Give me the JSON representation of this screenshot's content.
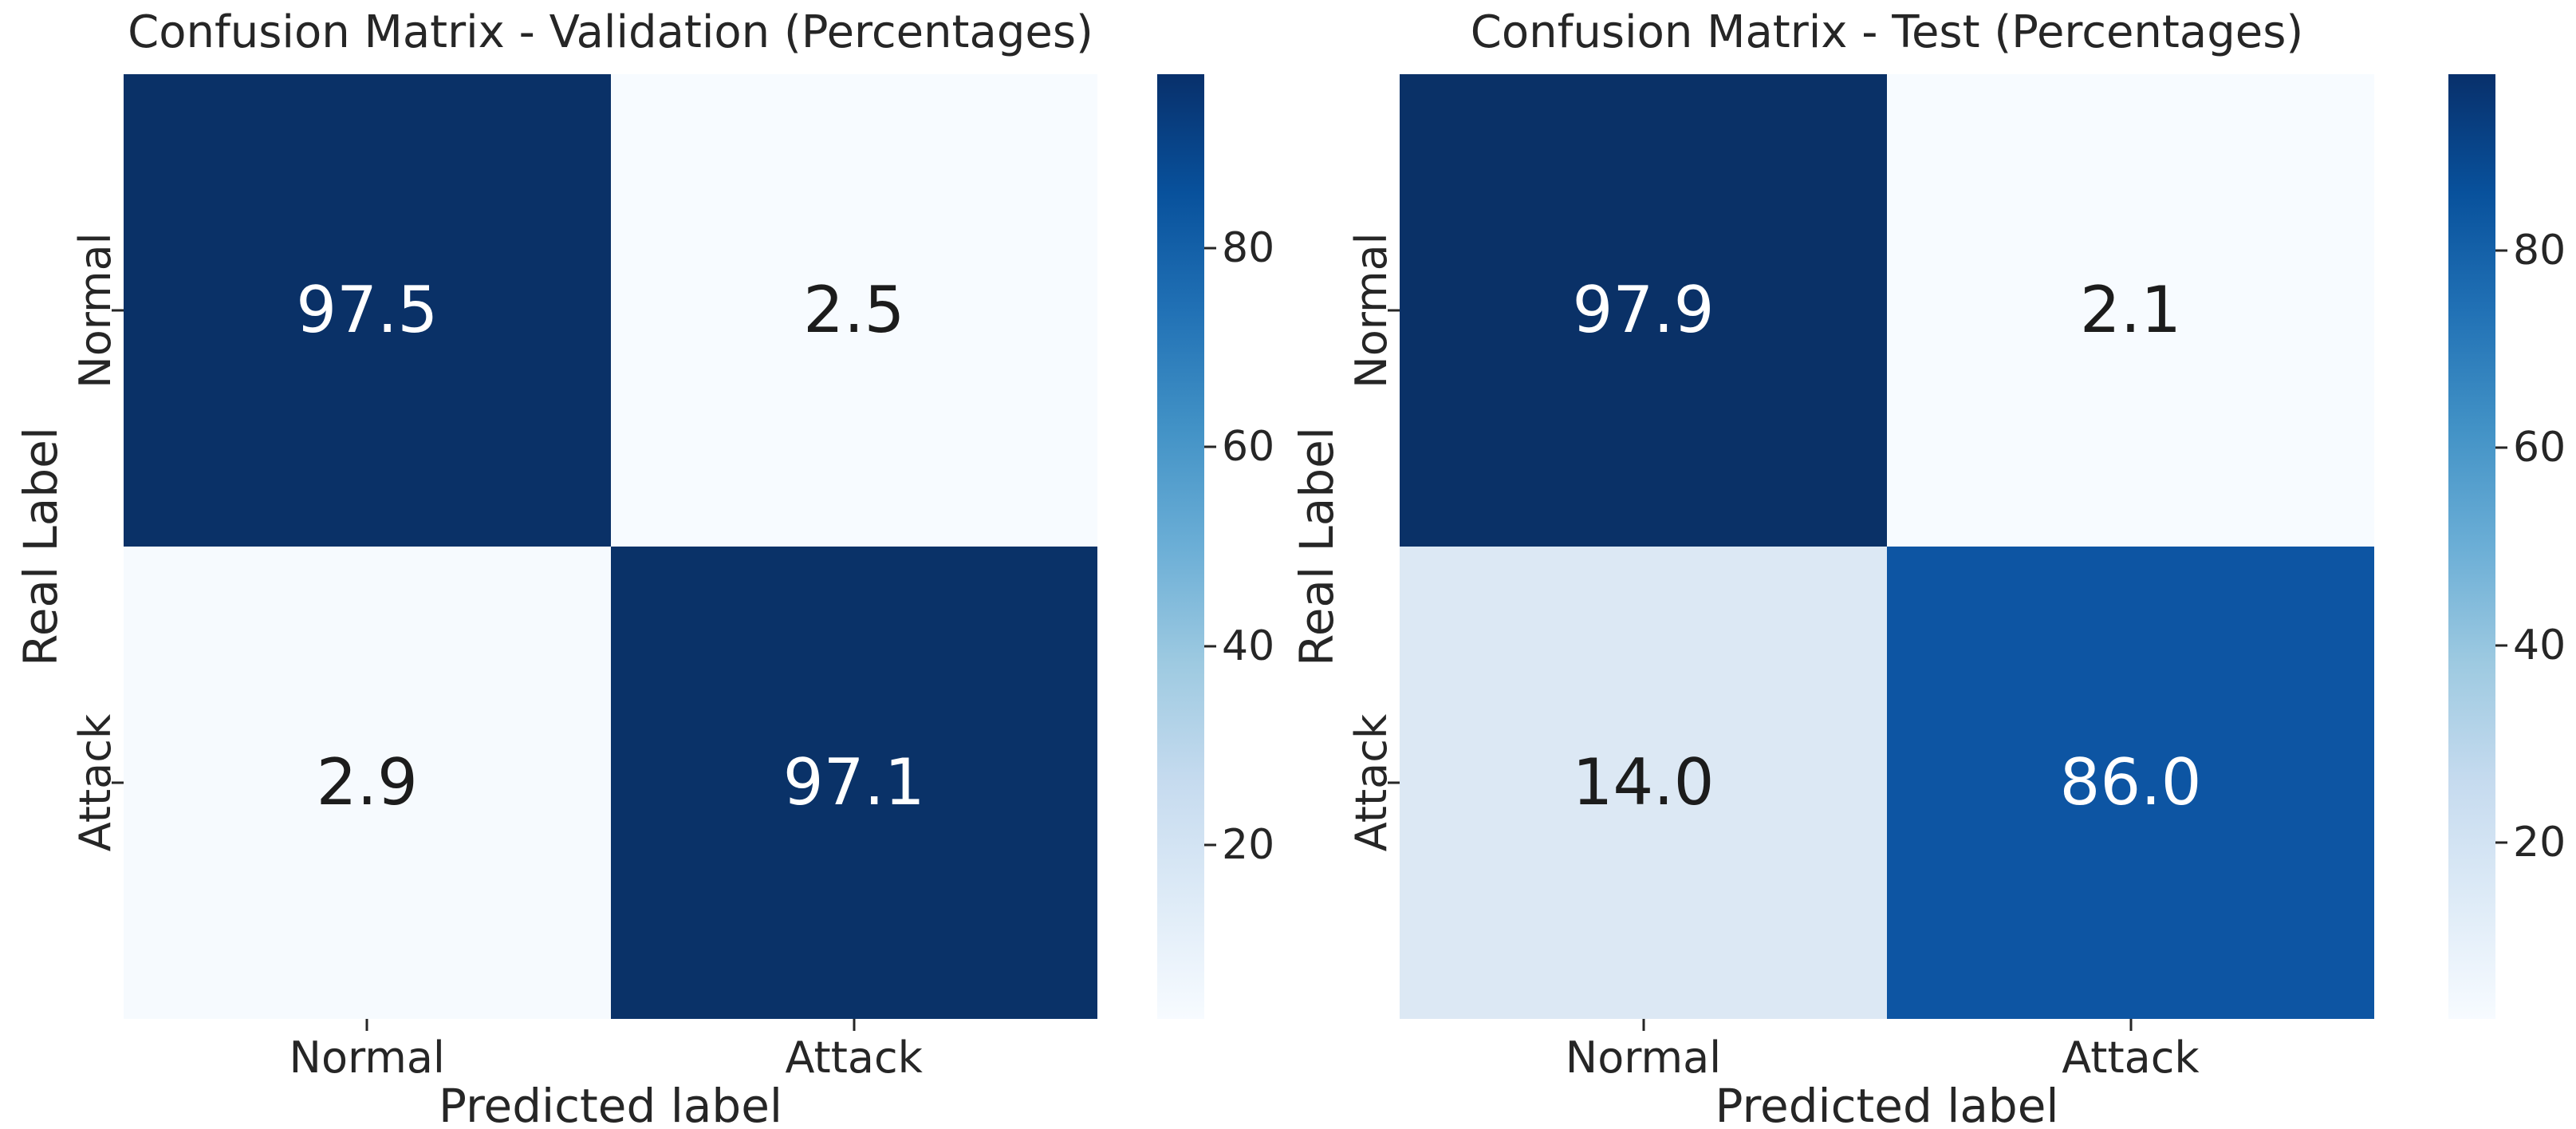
{
  "figure": {
    "background": "#ffffff",
    "text_color": "#262626"
  },
  "colormap_stops": [
    "#08306b",
    "#08519c",
    "#2171b5",
    "#4292c6",
    "#6baed6",
    "#9ecae1",
    "#c6dbef",
    "#deebf7",
    "#f7fbff"
  ],
  "chart_data": [
    {
      "type": "heatmap",
      "title": "Confusion Matrix - Validation (Percentages)",
      "xlabel": "Predicted label",
      "ylabel": "Real Label",
      "x_tick_labels": [
        "Normal",
        "Attack"
      ],
      "y_tick_labels": [
        "Normal",
        "Attack"
      ],
      "rows": [
        [
          97.5,
          2.5
        ],
        [
          2.9,
          97.1
        ]
      ],
      "cell_text": [
        [
          "97.5",
          "2.5"
        ],
        [
          "2.9",
          "97.1"
        ]
      ],
      "cell_colors": [
        [
          "#0a3167",
          "#f7fbff"
        ],
        [
          "#f6fafe",
          "#0a3268"
        ]
      ],
      "text_colors": [
        [
          "#ffffff",
          "#1c1c1c"
        ],
        [
          "#1c1c1c",
          "#ffffff"
        ]
      ],
      "colormap": "Blues",
      "colorbar_ticks": [
        80,
        60,
        40,
        20
      ],
      "vmin": 2.5,
      "vmax": 97.5,
      "legend": "colorbar-right",
      "grid": false
    },
    {
      "type": "heatmap",
      "title": "Confusion Matrix - Test (Percentages)",
      "xlabel": "Predicted label",
      "ylabel": "Real Label",
      "x_tick_labels": [
        "Normal",
        "Attack"
      ],
      "y_tick_labels": [
        "Normal",
        "Attack"
      ],
      "rows": [
        [
          97.9,
          2.1
        ],
        [
          14.0,
          86.0
        ]
      ],
      "cell_text": [
        [
          "97.9",
          "2.1"
        ],
        [
          "14.0",
          "86.0"
        ]
      ],
      "cell_colors": [
        [
          "#0a3167",
          "#f7fbff"
        ],
        [
          "#dce8f4",
          "#0d55a3"
        ]
      ],
      "text_colors": [
        [
          "#ffffff",
          "#1c1c1c"
        ],
        [
          "#1c1c1c",
          "#ffffff"
        ]
      ],
      "colormap": "Blues",
      "colorbar_ticks": [
        80,
        60,
        40,
        20
      ],
      "vmin": 2.1,
      "vmax": 97.9,
      "legend": "colorbar-right",
      "grid": false
    }
  ]
}
